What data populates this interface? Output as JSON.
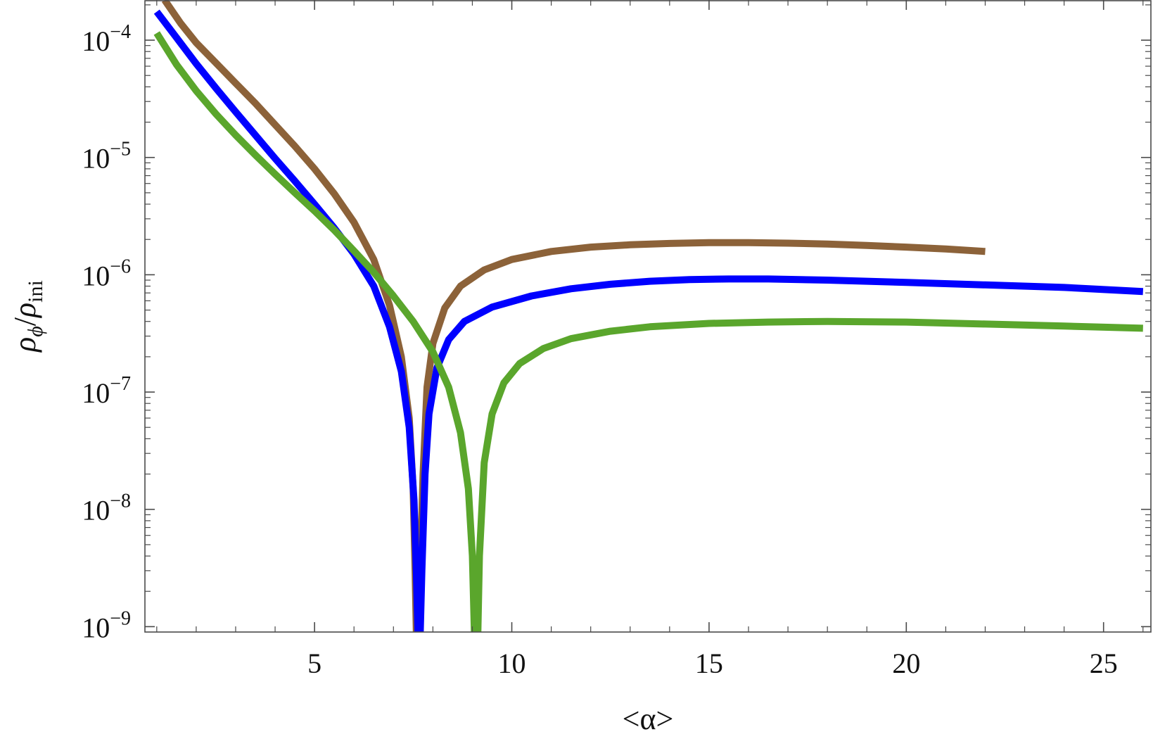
{
  "chart_data": {
    "type": "line",
    "title": "",
    "xlabel": "<α>",
    "ylabel": "ρϕ/ρini",
    "xlim": [
      0.7,
      26.2
    ],
    "ylim": [
      9e-10,
      0.00022
    ],
    "y_scale": "log",
    "grid": false,
    "legend": "none",
    "x_ticks": [
      {
        "value": 5,
        "label": "5"
      },
      {
        "value": 10,
        "label": "10"
      },
      {
        "value": 15,
        "label": "15"
      },
      {
        "value": 20,
        "label": "20"
      },
      {
        "value": 25,
        "label": "25"
      }
    ],
    "y_ticks": [
      {
        "value": 0.0001,
        "base": "10",
        "exp": "−4"
      },
      {
        "value": 1e-05,
        "base": "10",
        "exp": "−5"
      },
      {
        "value": 1e-06,
        "base": "10",
        "exp": "−6"
      },
      {
        "value": 1e-07,
        "base": "10",
        "exp": "−7"
      },
      {
        "value": 1e-08,
        "base": "10",
        "exp": "−8"
      },
      {
        "value": 1e-09,
        "base": "10",
        "exp": "−9"
      }
    ],
    "series": [
      {
        "color": "#8c6239",
        "points": [
          [
            1.2,
            0.00022
          ],
          [
            1.6,
            0.00014
          ],
          [
            2.0,
            9.5e-05
          ],
          [
            2.5,
            6.4e-05
          ],
          [
            3.0,
            4.3e-05
          ],
          [
            3.5,
            2.9e-05
          ],
          [
            4.0,
            1.9e-05
          ],
          [
            4.5,
            1.25e-05
          ],
          [
            5.0,
            8e-06
          ],
          [
            5.5,
            4.9e-06
          ],
          [
            6.0,
            2.8e-06
          ],
          [
            6.5,
            1.35e-06
          ],
          [
            6.9,
            5.5e-07
          ],
          [
            7.2,
            2e-07
          ],
          [
            7.4,
            6e-08
          ],
          [
            7.5,
            1.5e-08
          ],
          [
            7.55,
            3e-09
          ],
          [
            7.58,
            9e-10
          ],
          [
            7.64,
            9e-10
          ],
          [
            7.68,
            3e-09
          ],
          [
            7.75,
            2e-08
          ],
          [
            7.85,
            1.1e-07
          ],
          [
            8.0,
            2.6e-07
          ],
          [
            8.3,
            5.2e-07
          ],
          [
            8.7,
            8e-07
          ],
          [
            9.3,
            1.1e-06
          ],
          [
            10.0,
            1.35e-06
          ],
          [
            11.0,
            1.58e-06
          ],
          [
            12.0,
            1.72e-06
          ],
          [
            13.0,
            1.8e-06
          ],
          [
            14.0,
            1.85e-06
          ],
          [
            15.0,
            1.88e-06
          ],
          [
            16.0,
            1.88e-06
          ],
          [
            17.0,
            1.86e-06
          ],
          [
            18.0,
            1.83e-06
          ],
          [
            19.0,
            1.78e-06
          ],
          [
            20.0,
            1.72e-06
          ],
          [
            21.0,
            1.66e-06
          ],
          [
            22.0,
            1.58e-06
          ]
        ]
      },
      {
        "color": "#0000ff",
        "points": [
          [
            1.0,
            0.000175
          ],
          [
            1.5,
            0.000105
          ],
          [
            2.0,
            6.3e-05
          ],
          [
            2.5,
            3.9e-05
          ],
          [
            3.0,
            2.45e-05
          ],
          [
            3.5,
            1.55e-05
          ],
          [
            4.0,
            9.8e-06
          ],
          [
            4.5,
            6.3e-06
          ],
          [
            5.0,
            4e-06
          ],
          [
            5.5,
            2.5e-06
          ],
          [
            6.0,
            1.5e-06
          ],
          [
            6.5,
            8e-07
          ],
          [
            6.9,
            3.6e-07
          ],
          [
            7.2,
            1.5e-07
          ],
          [
            7.4,
            5e-08
          ],
          [
            7.52,
            1.2e-08
          ],
          [
            7.58,
            3e-09
          ],
          [
            7.62,
            9e-10
          ],
          [
            7.68,
            9e-10
          ],
          [
            7.72,
            3e-09
          ],
          [
            7.8,
            2e-08
          ],
          [
            7.9,
            6.5e-08
          ],
          [
            8.1,
            1.6e-07
          ],
          [
            8.4,
            2.8e-07
          ],
          [
            8.8,
            4e-07
          ],
          [
            9.5,
            5.3e-07
          ],
          [
            10.5,
            6.6e-07
          ],
          [
            11.5,
            7.6e-07
          ],
          [
            12.5,
            8.3e-07
          ],
          [
            13.5,
            8.8e-07
          ],
          [
            14.5,
            9.1e-07
          ],
          [
            15.5,
            9.2e-07
          ],
          [
            16.5,
            9.2e-07
          ],
          [
            18.0,
            9e-07
          ],
          [
            20.0,
            8.6e-07
          ],
          [
            22.0,
            8.2e-07
          ],
          [
            24.0,
            7.8e-07
          ],
          [
            26.0,
            7.2e-07
          ]
        ]
      },
      {
        "color": "#5aa62c",
        "points": [
          [
            1.0,
            0.000115
          ],
          [
            1.5,
            6.2e-05
          ],
          [
            2.0,
            3.7e-05
          ],
          [
            2.5,
            2.35e-05
          ],
          [
            3.0,
            1.55e-05
          ],
          [
            3.5,
            1.05e-05
          ],
          [
            4.0,
            7.2e-06
          ],
          [
            4.5,
            5e-06
          ],
          [
            5.0,
            3.5e-06
          ],
          [
            5.5,
            2.4e-06
          ],
          [
            6.0,
            1.6e-06
          ],
          [
            6.5,
            1.05e-06
          ],
          [
            7.0,
            6.6e-07
          ],
          [
            7.5,
            4e-07
          ],
          [
            8.0,
            2.2e-07
          ],
          [
            8.4,
            1.1e-07
          ],
          [
            8.7,
            4.5e-08
          ],
          [
            8.9,
            1.5e-08
          ],
          [
            9.0,
            4e-09
          ],
          [
            9.05,
            9e-10
          ],
          [
            9.14,
            9e-10
          ],
          [
            9.18,
            4e-09
          ],
          [
            9.3,
            2.5e-08
          ],
          [
            9.5,
            6.5e-08
          ],
          [
            9.8,
            1.2e-07
          ],
          [
            10.2,
            1.75e-07
          ],
          [
            10.8,
            2.35e-07
          ],
          [
            11.5,
            2.85e-07
          ],
          [
            12.5,
            3.3e-07
          ],
          [
            13.5,
            3.6e-07
          ],
          [
            15.0,
            3.85e-07
          ],
          [
            16.5,
            3.95e-07
          ],
          [
            18.0,
            4e-07
          ],
          [
            20.0,
            3.95e-07
          ],
          [
            22.0,
            3.8e-07
          ],
          [
            24.0,
            3.65e-07
          ],
          [
            26.0,
            3.5e-07
          ]
        ]
      }
    ]
  }
}
